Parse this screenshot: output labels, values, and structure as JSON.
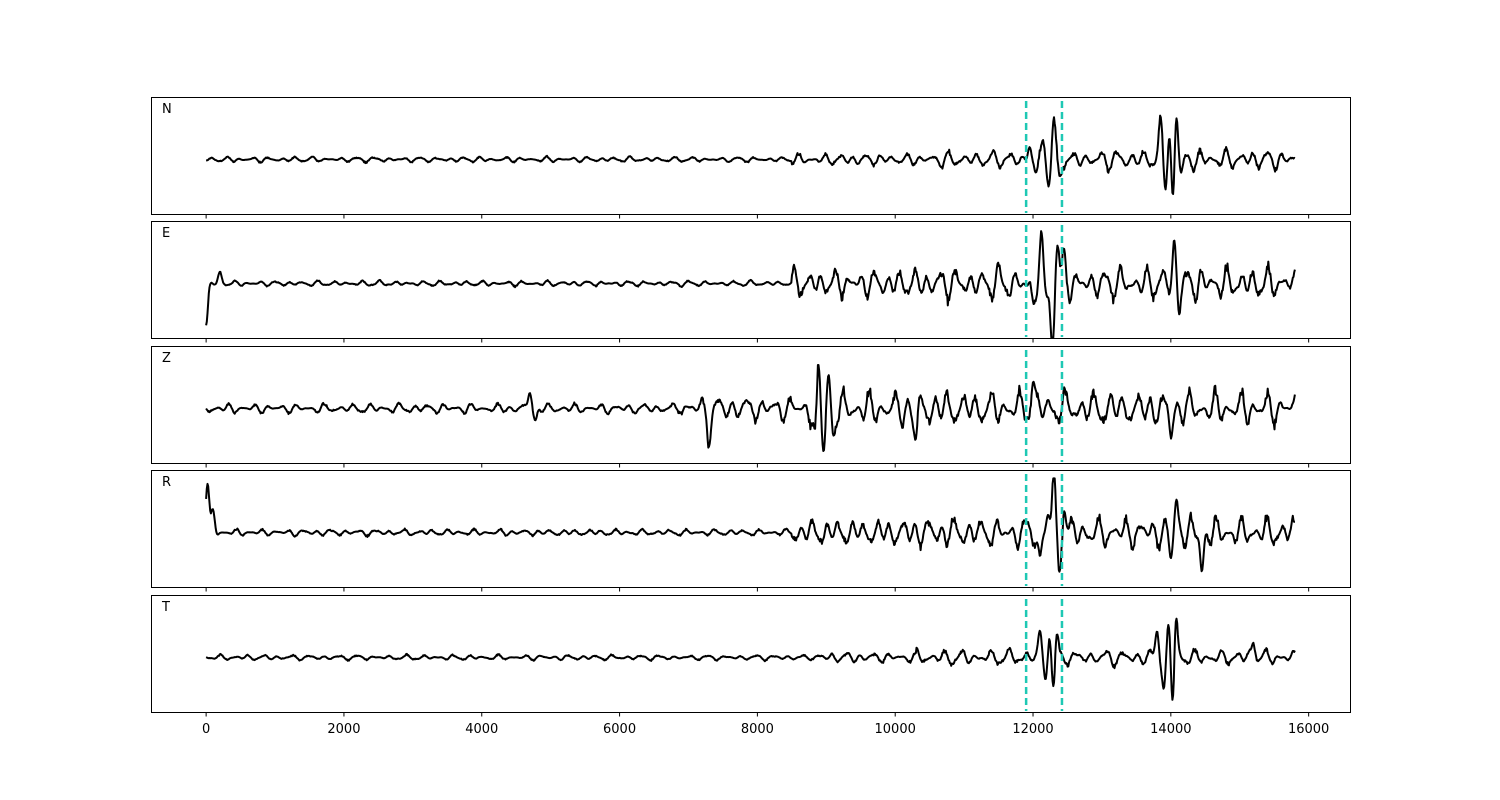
{
  "chart_data": {
    "type": "line",
    "xlim": [
      -800,
      16600
    ],
    "x_ticks": [
      0,
      2000,
      4000,
      6000,
      8000,
      10000,
      12000,
      14000,
      16000
    ],
    "x_tick_labels": [
      "0",
      "2000",
      "4000",
      "6000",
      "8000",
      "10000",
      "12000",
      "14000",
      "16000"
    ],
    "xlabel": "",
    "ylabel": "",
    "grid": false,
    "trace_color": "#000000",
    "marker_color": "#1ec8b4",
    "vertical_markers": [
      11900,
      12420
    ],
    "x_end": 15800,
    "panels": [
      {
        "name": "N",
        "features": [
          {
            "x": 11950,
            "amp": 0.25
          },
          {
            "x": 12050,
            "amp": -0.3
          },
          {
            "x": 12150,
            "amp": 0.45
          },
          {
            "x": 12230,
            "amp": -0.45
          },
          {
            "x": 12300,
            "amp": 0.7
          },
          {
            "x": 12380,
            "amp": -0.35
          },
          {
            "x": 13850,
            "amp": 0.7
          },
          {
            "x": 13920,
            "amp": -0.5
          },
          {
            "x": 13980,
            "amp": 0.6
          },
          {
            "x": 14030,
            "amp": -0.95
          },
          {
            "x": 14080,
            "amp": 1.0
          },
          {
            "x": 14150,
            "amp": -0.3
          }
        ]
      },
      {
        "name": "E",
        "features": [
          {
            "x": 0,
            "amp": -0.8
          },
          {
            "x": 200,
            "amp": 0.2
          },
          {
            "x": 12000,
            "amp": -0.35
          },
          {
            "x": 12120,
            "amp": 0.85
          },
          {
            "x": 12200,
            "amp": -0.4
          },
          {
            "x": 12280,
            "amp": -1.0
          },
          {
            "x": 12350,
            "amp": 0.6
          },
          {
            "x": 12450,
            "amp": 0.55
          },
          {
            "x": 14050,
            "amp": 0.7
          },
          {
            "x": 14120,
            "amp": -0.35
          }
        ]
      },
      {
        "name": "Z",
        "features": [
          {
            "x": 4700,
            "amp": 0.35
          },
          {
            "x": 4780,
            "amp": -0.25
          },
          {
            "x": 7300,
            "amp": -0.55
          },
          {
            "x": 8850,
            "amp": -0.9
          },
          {
            "x": 8880,
            "amp": 1.0
          },
          {
            "x": 8960,
            "amp": -0.8
          },
          {
            "x": 9030,
            "amp": 0.75
          },
          {
            "x": 9100,
            "amp": -0.55
          },
          {
            "x": 10300,
            "amp": -0.6
          },
          {
            "x": 12000,
            "amp": 0.55
          },
          {
            "x": 14000,
            "amp": -0.45
          }
        ]
      },
      {
        "name": "R",
        "features": [
          {
            "x": 20,
            "amp": 0.95
          },
          {
            "x": 100,
            "amp": 0.4
          },
          {
            "x": 12100,
            "amp": -0.55
          },
          {
            "x": 12220,
            "amp": 0.35
          },
          {
            "x": 12300,
            "amp": 1.0
          },
          {
            "x": 12380,
            "amp": -0.65
          },
          {
            "x": 12450,
            "amp": 0.55
          },
          {
            "x": 14080,
            "amp": 0.65
          },
          {
            "x": 14000,
            "amp": -0.5
          },
          {
            "x": 14450,
            "amp": -0.75
          }
        ]
      },
      {
        "name": "T",
        "features": [
          {
            "x": 12100,
            "amp": 0.5
          },
          {
            "x": 12180,
            "amp": -0.45
          },
          {
            "x": 12240,
            "amp": 0.55
          },
          {
            "x": 12300,
            "amp": -0.75
          },
          {
            "x": 12340,
            "amp": 0.5
          },
          {
            "x": 13800,
            "amp": 0.55
          },
          {
            "x": 13900,
            "amp": -0.6
          },
          {
            "x": 13970,
            "amp": 0.6
          },
          {
            "x": 14030,
            "amp": -1.0
          },
          {
            "x": 14070,
            "amp": 0.9
          },
          {
            "x": 15200,
            "amp": 0.35
          }
        ]
      }
    ]
  }
}
